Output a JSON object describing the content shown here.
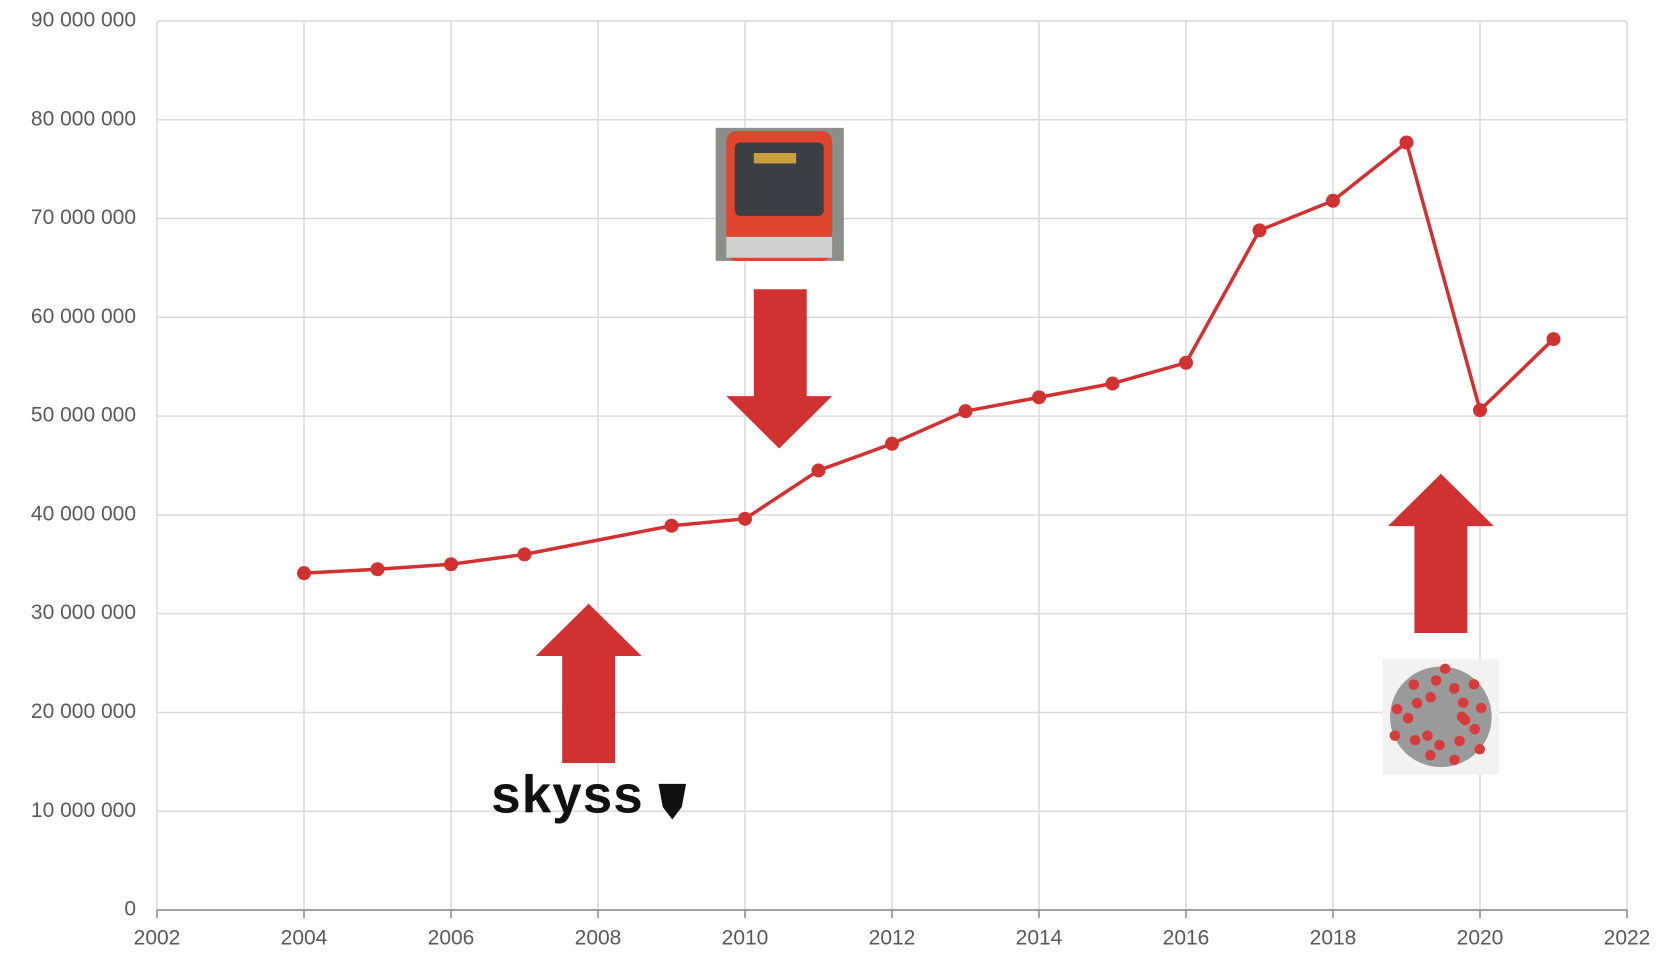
{
  "chart_data": {
    "type": "line",
    "x": [
      2004,
      2005,
      2006,
      2007,
      2009,
      2010,
      2011,
      2012,
      2013,
      2014,
      2015,
      2016,
      2017,
      2018,
      2019,
      2020,
      2021
    ],
    "values": [
      34100000,
      34500000,
      35000000,
      36000000,
      38900000,
      39600000,
      44500000,
      47200000,
      50500000,
      51900000,
      53300000,
      55400000,
      68800000,
      71800000,
      77700000,
      50600000,
      57800000
    ],
    "color": "#d03232",
    "xlim": [
      2002,
      2022
    ],
    "xticks": [
      2002,
      2004,
      2006,
      2008,
      2010,
      2012,
      2014,
      2016,
      2018,
      2020,
      2022
    ],
    "ylim": [
      0,
      90000000
    ],
    "yticks": [
      0,
      {
        "value": 10000000,
        "label": "10 000 000"
      },
      {
        "value": 20000000,
        "label": "20 000 000"
      },
      {
        "value": 30000000,
        "label": "30 000 000"
      },
      {
        "value": 40000000,
        "label": "40 000 000"
      },
      {
        "value": 50000000,
        "label": "50 000 000"
      },
      {
        "value": 60000000,
        "label": "60 000 000"
      },
      {
        "value": 70000000,
        "label": "70 000 000"
      },
      {
        "value": 80000000,
        "label": "80 000 000"
      },
      {
        "value": 90000000,
        "label": "90 000 000"
      }
    ],
    "grid": true,
    "annotations": [
      "skyss"
    ]
  }
}
